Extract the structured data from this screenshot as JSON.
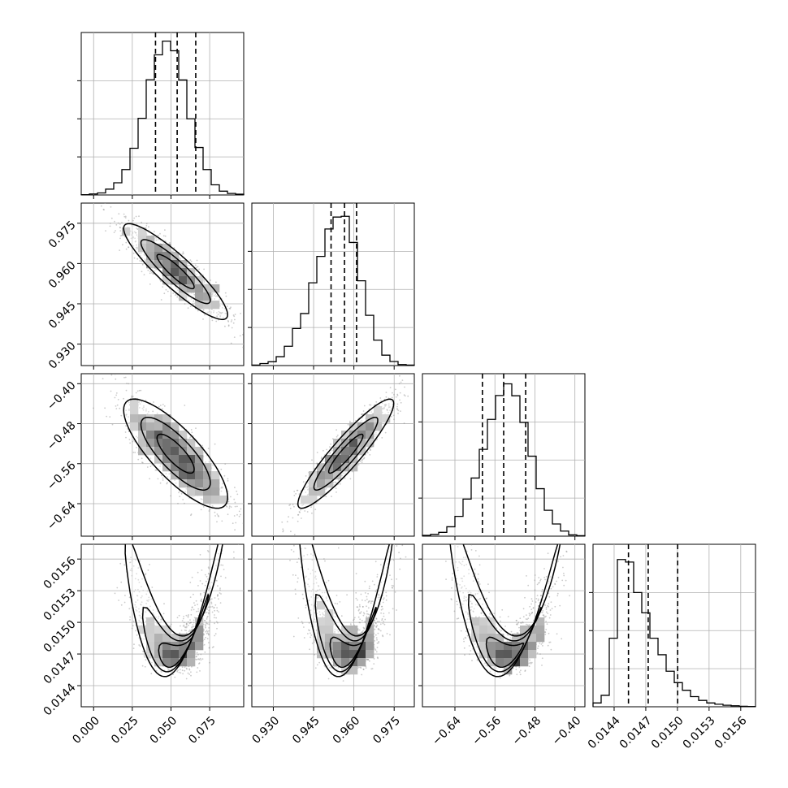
{
  "chart_data": {
    "type": "corner",
    "parameters": [
      {
        "ticks": [
          0.0,
          0.025,
          0.05,
          0.075
        ],
        "tick_labels": [
          "0.000",
          "0.025",
          "0.050",
          "0.075"
        ],
        "range": [
          -0.008,
          0.097
        ],
        "quantiles": [
          0.04,
          0.054,
          0.066
        ],
        "histogram": {
          "edges_start": -0.008,
          "bin_width": 0.00525,
          "counts": [
            0.1,
            0.4,
            0.8,
            2.3,
            4.8,
            10.0,
            18.4,
            30.2,
            45.4,
            55.2,
            60.6,
            56.8,
            45.3,
            30.0,
            18.7,
            10.0,
            4.0,
            1.5,
            0.6,
            0.3
          ]
        }
      },
      {
        "ticks": [
          0.93,
          0.945,
          0.96,
          0.975
        ],
        "tick_labels": [
          "0.930",
          "0.945",
          "0.960",
          "0.975"
        ],
        "range": [
          0.922,
          0.9825
        ],
        "quantiles": [
          0.9515,
          0.9565,
          0.961
        ],
        "histogram": {
          "edges_start": 0.922,
          "bin_width": 0.003025,
          "counts": [
            0.2,
            0.8,
            1.5,
            3.5,
            7.6,
            14.6,
            20.5,
            32.6,
            43.0,
            53.8,
            58.5,
            58.8,
            48.5,
            33.4,
            19.8,
            10.0,
            4.1,
            1.6,
            0.4,
            0.2
          ]
        }
      },
      {
        "ticks": [
          -0.64,
          -0.56,
          -0.48,
          -0.4
        ],
        "tick_labels": [
          "−0.64",
          "−0.56",
          "−0.48",
          "−0.40"
        ],
        "range": [
          -0.705,
          -0.38
        ],
        "quantiles": [
          -0.585,
          -0.5425,
          -0.4985
        ],
        "histogram": {
          "edges_start": -0.705,
          "bin_width": 0.01625,
          "counts": [
            0.3,
            0.7,
            1.5,
            3.7,
            7.8,
            14.6,
            22.9,
            34.2,
            46.0,
            55.4,
            60.0,
            55.3,
            44.8,
            31.5,
            18.7,
            10.2,
            4.8,
            2.0,
            0.5,
            0.2
          ]
        }
      },
      {
        "ticks": [
          0.0144,
          0.0147,
          0.015,
          0.0153,
          0.0156
        ],
        "tick_labels": [
          "0.0144",
          "0.0147",
          "0.0150",
          "0.0153",
          "0.0156"
        ],
        "range": [
          0.0142,
          0.01574
        ],
        "quantiles": [
          0.014536,
          0.014723,
          0.015002
        ],
        "histogram": {
          "edges_start": 0.0142,
          "bin_width": 7.7e-05,
          "counts": [
            1.5,
            4.5,
            27.0,
            58.0,
            57.0,
            45.0,
            37.0,
            27.0,
            20.5,
            14.0,
            9.5,
            6.5,
            4.0,
            2.5,
            1.5,
            1.0,
            0.6,
            0.4,
            0.2,
            0.1
          ]
        }
      }
    ],
    "joint": [
      {
        "row": 1,
        "col": 0,
        "mean": [
          0.053,
          0.957
        ],
        "sd": [
          0.016,
          0.0085
        ],
        "rho": -0.9
      },
      {
        "row": 2,
        "col": 0,
        "mean": [
          0.053,
          -0.54
        ],
        "sd": [
          0.016,
          0.052
        ],
        "rho": -0.8
      },
      {
        "row": 2,
        "col": 1,
        "mean": [
          0.957,
          -0.54
        ],
        "sd": [
          0.0085,
          0.052
        ],
        "rho": 0.92
      },
      {
        "row": 3,
        "col": 0,
        "curve": "banana"
      },
      {
        "row": 3,
        "col": 1,
        "curve": "banana"
      },
      {
        "row": 3,
        "col": 2,
        "curve": "banana"
      }
    ],
    "colors": {
      "line": "#000000",
      "grid": "#b0b0b0",
      "scatter": "#8c8c8c"
    }
  }
}
